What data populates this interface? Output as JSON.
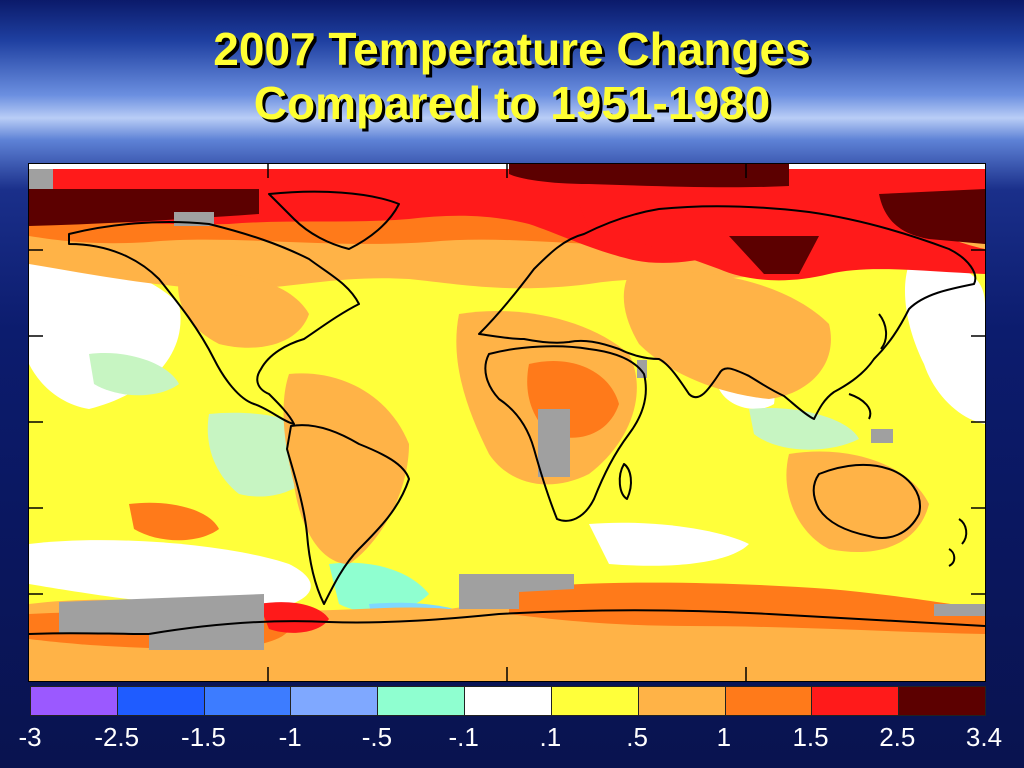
{
  "title": {
    "line1": "2007 Temperature Changes",
    "line2": "Compared to 1951-1980"
  },
  "colors": {
    "title_text": "#ffff33",
    "no_data": "#a0a0a0",
    "coastline": "#000000"
  },
  "color_scale": {
    "swatches": [
      "#9b59ff",
      "#1f5cff",
      "#3d7cff",
      "#7fa8ff",
      "#8fffd0",
      "#ffffff",
      "#ffff3a",
      "#ffb347",
      "#ff7a1a",
      "#ff1a1a",
      "#5c0000"
    ],
    "tick_labels": [
      "-3",
      "-2.5",
      "-1.5",
      "-1",
      "-.5",
      "-.1",
      ".1",
      ".5",
      "1",
      "1.5",
      "2.5",
      "3.4"
    ]
  }
}
